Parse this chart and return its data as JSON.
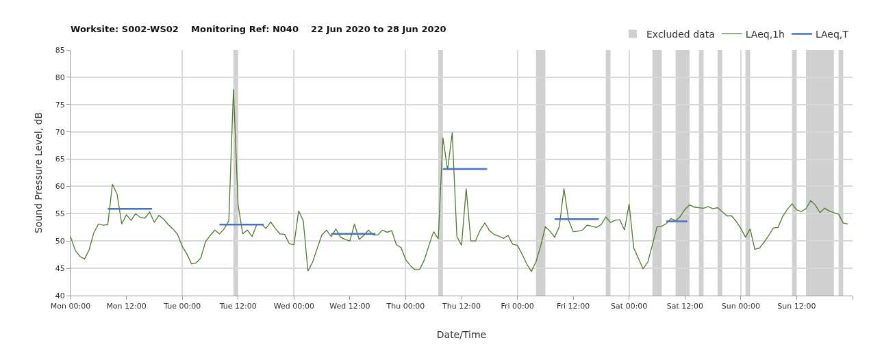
{
  "chart_data": {
    "type": "line",
    "title": "Worksite: S002-WS02    Monitoring Ref: N040    22 Jun 2020 to 28 Jun 2020",
    "xlabel": "Date/Time",
    "ylabel": "Sound Pressure Level, dB",
    "xlim": [
      "2020-06-22T00:00",
      "2020-06-29T00:00"
    ],
    "xticks": [
      {
        "value": "2020-06-22T00:00",
        "label": "Mon 00:00"
      },
      {
        "value": "2020-06-22T12:00",
        "label": "Mon 12:00"
      },
      {
        "value": "2020-06-23T00:00",
        "label": "Tue 00:00"
      },
      {
        "value": "2020-06-23T12:00",
        "label": "Tue 12:00"
      },
      {
        "value": "2020-06-24T00:00",
        "label": "Wed 00:00"
      },
      {
        "value": "2020-06-24T12:00",
        "label": "Wed 12:00"
      },
      {
        "value": "2020-06-25T00:00",
        "label": "Thu 00:00"
      },
      {
        "value": "2020-06-25T12:00",
        "label": "Thu 12:00"
      },
      {
        "value": "2020-06-26T00:00",
        "label": "Fri 00:00"
      },
      {
        "value": "2020-06-26T12:00",
        "label": "Fri 12:00"
      },
      {
        "value": "2020-06-27T00:00",
        "label": "Sat 00:00"
      },
      {
        "value": "2020-06-27T12:00",
        "label": "Sat 12:00"
      },
      {
        "value": "2020-06-28T00:00",
        "label": "Sun 00:00"
      },
      {
        "value": "2020-06-28T12:00",
        "label": "Sun 12:00"
      },
      {
        "value": "2020-06-29T00:00",
        "label": null
      }
    ],
    "ylim": [
      40,
      85
    ],
    "yticks": [
      40,
      45,
      50,
      55,
      60,
      65,
      70,
      75,
      80,
      85
    ],
    "grid": true,
    "legend": "top right",
    "marker": "none",
    "line_style": "solid",
    "bands": [
      {
        "axis": "x",
        "from": "2020-06-23T11:00",
        "to": "2020-06-23T12:00",
        "label": "Excluded data",
        "color": "#d0d0d0"
      },
      {
        "axis": "x",
        "from": "2020-06-25T07:00",
        "to": "2020-06-25T08:00",
        "color": "#d0d0d0"
      },
      {
        "axis": "x",
        "from": "2020-06-26T04:00",
        "to": "2020-06-26T06:00",
        "color": "#d0d0d0"
      },
      {
        "axis": "x",
        "from": "2020-06-26T19:00",
        "to": "2020-06-26T20:00",
        "color": "#d0d0d0"
      },
      {
        "axis": "x",
        "from": "2020-06-27T05:00",
        "to": "2020-06-27T07:00",
        "color": "#d0d0d0"
      },
      {
        "axis": "x",
        "from": "2020-06-27T10:00",
        "to": "2020-06-27T13:00",
        "color": "#d0d0d0"
      },
      {
        "axis": "x",
        "from": "2020-06-27T15:00",
        "to": "2020-06-27T16:00",
        "color": "#d0d0d0"
      },
      {
        "axis": "x",
        "from": "2020-06-27T19:00",
        "to": "2020-06-27T20:00",
        "color": "#d0d0d0"
      },
      {
        "axis": "x",
        "from": "2020-06-28T01:00",
        "to": "2020-06-28T02:00",
        "color": "#d0d0d0"
      },
      {
        "axis": "x",
        "from": "2020-06-28T11:00",
        "to": "2020-06-28T12:00",
        "color": "#d0d0d0"
      },
      {
        "axis": "x",
        "from": "2020-06-28T14:00",
        "to": "2020-06-28T20:00",
        "color": "#d0d0d0"
      },
      {
        "axis": "x",
        "from": "2020-06-28T21:00",
        "to": "2020-06-28T22:00",
        "color": "#d0d0d0"
      }
    ],
    "series": [
      {
        "name": "LAeq,1h",
        "color": "#4e7a2c",
        "x": [
          "2020-06-22T00:00",
          "2020-06-22T01:00",
          "2020-06-22T02:00",
          "2020-06-22T03:00",
          "2020-06-22T04:00",
          "2020-06-22T05:00",
          "2020-06-22T06:00",
          "2020-06-22T07:00",
          "2020-06-22T08:00",
          "2020-06-22T09:00",
          "2020-06-22T10:00",
          "2020-06-22T11:00",
          "2020-06-22T12:00",
          "2020-06-22T13:00",
          "2020-06-22T14:00",
          "2020-06-22T15:00",
          "2020-06-22T16:00",
          "2020-06-22T17:00",
          "2020-06-22T18:00",
          "2020-06-22T19:00",
          "2020-06-22T20:00",
          "2020-06-22T21:00",
          "2020-06-22T22:00",
          "2020-06-22T23:00",
          "2020-06-23T00:00",
          "2020-06-23T01:00",
          "2020-06-23T02:00",
          "2020-06-23T03:00",
          "2020-06-23T04:00",
          "2020-06-23T05:00",
          "2020-06-23T06:00",
          "2020-06-23T07:00",
          "2020-06-23T08:00",
          "2020-06-23T09:00",
          "2020-06-23T10:00",
          "2020-06-23T11:00",
          "2020-06-23T12:00",
          "2020-06-23T13:00",
          "2020-06-23T14:00",
          "2020-06-23T15:00",
          "2020-06-23T16:00",
          "2020-06-23T17:00",
          "2020-06-23T18:00",
          "2020-06-23T19:00",
          "2020-06-23T20:00",
          "2020-06-23T21:00",
          "2020-06-23T22:00",
          "2020-06-23T23:00",
          "2020-06-24T00:00",
          "2020-06-24T01:00",
          "2020-06-24T02:00",
          "2020-06-24T03:00",
          "2020-06-24T04:00",
          "2020-06-24T05:00",
          "2020-06-24T06:00",
          "2020-06-24T07:00",
          "2020-06-24T08:00",
          "2020-06-24T09:00",
          "2020-06-24T10:00",
          "2020-06-24T11:00",
          "2020-06-24T12:00",
          "2020-06-24T13:00",
          "2020-06-24T14:00",
          "2020-06-24T15:00",
          "2020-06-24T16:00",
          "2020-06-24T17:00",
          "2020-06-24T18:00",
          "2020-06-24T19:00",
          "2020-06-24T20:00",
          "2020-06-24T21:00",
          "2020-06-24T22:00",
          "2020-06-24T23:00",
          "2020-06-25T00:00",
          "2020-06-25T01:00",
          "2020-06-25T02:00",
          "2020-06-25T03:00",
          "2020-06-25T04:00",
          "2020-06-25T05:00",
          "2020-06-25T06:00",
          "2020-06-25T07:00",
          "2020-06-25T08:00",
          "2020-06-25T09:00",
          "2020-06-25T10:00",
          "2020-06-25T11:00",
          "2020-06-25T12:00",
          "2020-06-25T13:00",
          "2020-06-25T14:00",
          "2020-06-25T15:00",
          "2020-06-25T16:00",
          "2020-06-25T17:00",
          "2020-06-25T18:00",
          "2020-06-25T19:00",
          "2020-06-25T20:00",
          "2020-06-25T21:00",
          "2020-06-25T22:00",
          "2020-06-25T23:00",
          "2020-06-26T00:00",
          "2020-06-26T01:00",
          "2020-06-26T02:00",
          "2020-06-26T03:00",
          "2020-06-26T04:00",
          "2020-06-26T05:00",
          "2020-06-26T06:00",
          "2020-06-26T07:00",
          "2020-06-26T08:00",
          "2020-06-26T09:00",
          "2020-06-26T10:00",
          "2020-06-26T11:00",
          "2020-06-26T12:00",
          "2020-06-26T13:00",
          "2020-06-26T14:00",
          "2020-06-26T15:00",
          "2020-06-26T16:00",
          "2020-06-26T17:00",
          "2020-06-26T18:00",
          "2020-06-26T19:00",
          "2020-06-26T20:00",
          "2020-06-26T21:00",
          "2020-06-26T22:00",
          "2020-06-26T23:00",
          "2020-06-27T00:00",
          "2020-06-27T01:00",
          "2020-06-27T02:00",
          "2020-06-27T03:00",
          "2020-06-27T04:00",
          "2020-06-27T05:00",
          "2020-06-27T06:00",
          "2020-06-27T07:00",
          "2020-06-27T08:00",
          "2020-06-27T09:00",
          "2020-06-27T10:00",
          "2020-06-27T11:00",
          "2020-06-27T12:00",
          "2020-06-27T13:00",
          "2020-06-27T14:00",
          "2020-06-27T15:00",
          "2020-06-27T16:00",
          "2020-06-27T17:00",
          "2020-06-27T18:00",
          "2020-06-27T19:00",
          "2020-06-27T20:00",
          "2020-06-27T21:00",
          "2020-06-27T22:00",
          "2020-06-27T23:00",
          "2020-06-28T00:00",
          "2020-06-28T01:00",
          "2020-06-28T02:00",
          "2020-06-28T03:00",
          "2020-06-28T04:00",
          "2020-06-28T05:00",
          "2020-06-28T06:00",
          "2020-06-28T07:00",
          "2020-06-28T08:00",
          "2020-06-28T09:00",
          "2020-06-28T10:00",
          "2020-06-28T11:00",
          "2020-06-28T12:00",
          "2020-06-28T13:00",
          "2020-06-28T14:00",
          "2020-06-28T15:00",
          "2020-06-28T16:00",
          "2020-06-28T17:00",
          "2020-06-28T18:00",
          "2020-06-28T19:00",
          "2020-06-28T20:00",
          "2020-06-28T21:00",
          "2020-06-28T22:00",
          "2020-06-28T23:00"
        ],
        "values": [
          50.8,
          48.3,
          47.2,
          46.7,
          48.4,
          51.5,
          53.1,
          52.9,
          53.0,
          60.4,
          58.6,
          53.1,
          54.8,
          53.8,
          55.0,
          54.3,
          54.2,
          55.3,
          53.4,
          54.7,
          54.0,
          53.0,
          52.2,
          51.2,
          49.0,
          47.6,
          45.8,
          46.0,
          46.9,
          49.9,
          51.0,
          52.0,
          51.3,
          52.2,
          53.7,
          77.8,
          56.6,
          51.3,
          52.0,
          50.8,
          53.0,
          53.1,
          52.3,
          53.5,
          52.3,
          51.3,
          51.2,
          49.5,
          49.3,
          55.5,
          53.7,
          44.5,
          46.1,
          48.7,
          51.1,
          52.0,
          50.8,
          52.2,
          50.7,
          50.3,
          50.0,
          53.1,
          50.3,
          51.0,
          52.0,
          51.1,
          51.1,
          52.0,
          51.6,
          51.9,
          49.3,
          48.8,
          46.6,
          45.5,
          44.7,
          44.8,
          46.5,
          49.2,
          51.7,
          50.4,
          68.9,
          63.0,
          69.9,
          50.8,
          49.2,
          59.6,
          50.0,
          50.0,
          52.0,
          53.3,
          51.9,
          51.2,
          50.9,
          50.5,
          51.0,
          49.4,
          49.2,
          47.6,
          45.8,
          44.4,
          46.2,
          49.1,
          52.6,
          51.8,
          50.7,
          52.6,
          59.6,
          53.8,
          51.7,
          51.8,
          52.0,
          52.9,
          52.7,
          52.5,
          53.0,
          54.4,
          53.4,
          53.8,
          53.9,
          52.0,
          56.8,
          48.7,
          46.8,
          44.9,
          46.1,
          49.3,
          52.6,
          52.7,
          53.2,
          54.1,
          53.7,
          54.5,
          55.8,
          56.6,
          56.2,
          56.1,
          56.0,
          56.3,
          55.9,
          56.1,
          55.4,
          54.6,
          54.6,
          53.6,
          52.3,
          50.7,
          52.2,
          48.5,
          48.7,
          49.8,
          51.0,
          52.4,
          52.5,
          54.5,
          55.8,
          56.8,
          55.7,
          55.4,
          55.9,
          57.4,
          56.6,
          55.2,
          56.0,
          55.5,
          55.2,
          54.9,
          53.3,
          53.1
        ]
      },
      {
        "name": "LAeq,T",
        "color": "#4472c4",
        "x": [
          "2020-06-22T08:00",
          "2020-06-22T17:30",
          "2020-06-22T20:00",
          "2020-06-23T08:00",
          "2020-06-23T17:30",
          "2020-06-23T21:00",
          "2020-06-24T08:00",
          "2020-06-24T17:30",
          "2020-06-24T22:00",
          "2020-06-25T08:00",
          "2020-06-25T17:30",
          "2020-06-25T23:00",
          "2020-06-26T08:00",
          "2020-06-26T17:30",
          "2020-06-27T00:00",
          "2020-06-27T08:00",
          "2020-06-27T12:30"
        ],
        "values": [
          55.9,
          55.9,
          null,
          53.0,
          53.0,
          null,
          51.3,
          51.3,
          null,
          63.2,
          63.2,
          null,
          54.0,
          54.0,
          null,
          53.6,
          53.6
        ]
      }
    ]
  }
}
